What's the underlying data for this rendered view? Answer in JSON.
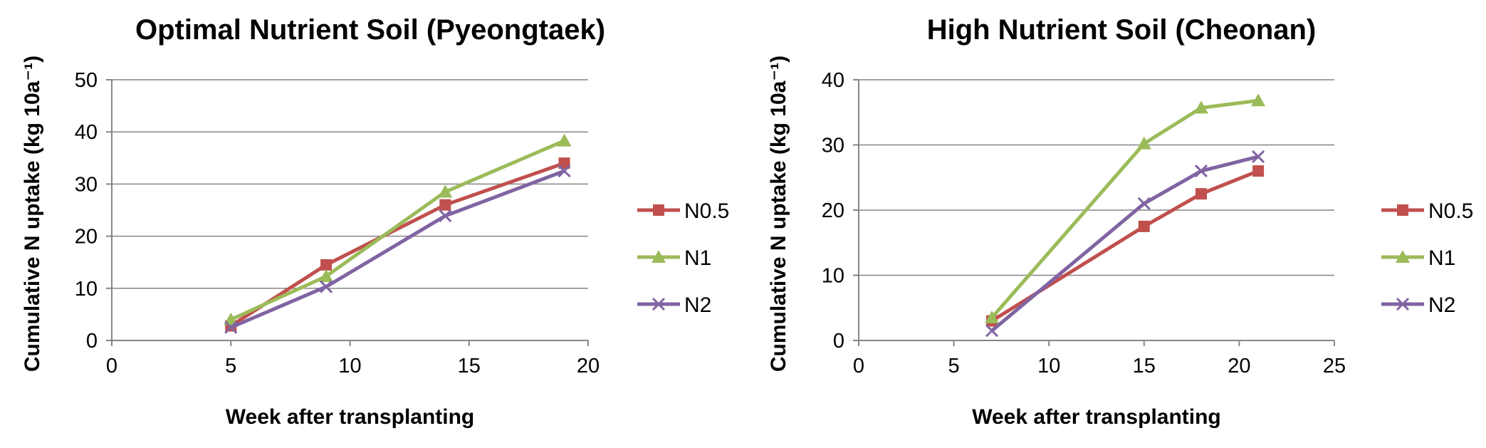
{
  "chart_data": [
    {
      "type": "line",
      "title": "Optimal Nutrient Soil (Pyeongtaek)",
      "xlabel": "Week after transplanting",
      "ylabel": "Cumulative N uptake (kg 10a⁻¹)",
      "xlim": [
        0,
        20
      ],
      "ylim": [
        0,
        50
      ],
      "xticks": [
        0,
        5,
        10,
        15,
        20
      ],
      "yticks": [
        0,
        10,
        20,
        30,
        40,
        50
      ],
      "grid": "horizontal",
      "legend_position": "right",
      "series": [
        {
          "name": "N0.5",
          "color": "#c0504d",
          "marker": "square",
          "x": [
            5,
            9,
            14,
            19
          ],
          "y": [
            2.8,
            14.5,
            26.0,
            34.0
          ]
        },
        {
          "name": "N1",
          "color": "#9bbb59",
          "marker": "triangle",
          "x": [
            5,
            9,
            14,
            19
          ],
          "y": [
            4.0,
            12.3,
            28.5,
            38.3
          ]
        },
        {
          "name": "N2",
          "color": "#8064a2",
          "marker": "x",
          "x": [
            5,
            9,
            14,
            19
          ],
          "y": [
            2.5,
            10.3,
            23.9,
            32.5
          ]
        }
      ]
    },
    {
      "type": "line",
      "title": "High Nutrient Soil (Cheonan)",
      "xlabel": "Week after transplanting",
      "ylabel": "Cumulative N uptake (kg 10a⁻¹)",
      "xlim": [
        0,
        25
      ],
      "ylim": [
        0,
        40
      ],
      "xticks": [
        0,
        5,
        10,
        15,
        20,
        25
      ],
      "yticks": [
        0,
        10,
        20,
        30,
        40
      ],
      "grid": "horizontal",
      "legend_position": "right",
      "series": [
        {
          "name": "N0.5",
          "color": "#c0504d",
          "marker": "square",
          "x": [
            7,
            15,
            18,
            21
          ],
          "y": [
            3.0,
            17.5,
            22.5,
            26.0
          ]
        },
        {
          "name": "N1",
          "color": "#9bbb59",
          "marker": "triangle",
          "x": [
            7,
            15,
            18,
            21
          ],
          "y": [
            3.5,
            30.2,
            35.7,
            36.8
          ]
        },
        {
          "name": "N2",
          "color": "#8064a2",
          "marker": "x",
          "x": [
            7,
            15,
            18,
            21
          ],
          "y": [
            1.5,
            21.0,
            26.0,
            28.2
          ]
        }
      ]
    }
  ]
}
